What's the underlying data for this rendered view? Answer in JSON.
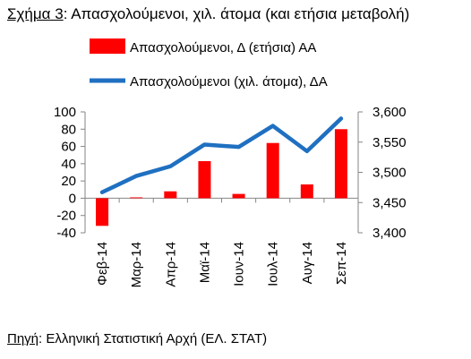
{
  "figure": {
    "title_label": "Σχήμα 3",
    "title_text": ": Απασχολούμενοι, χιλ. άτομα (και ετήσια μεταβολή)",
    "source_label": "Πηγή",
    "source_text": ": Ελληνική Στατιστική Αρχή (ΕΛ. ΣΤΑΤ)"
  },
  "chart_data": {
    "type": "bar+line",
    "categories": [
      "Φεβ-14",
      "Μαρ-14",
      "Απρ-14",
      "Μαϊ-14",
      "Ιουν-14",
      "Ιουλ-14",
      "Αυγ-14",
      "Σεπ-14"
    ],
    "series": [
      {
        "name": "Απασχολούμενοι, Δ (ετήσια) ΑΑ",
        "type": "bar",
        "axis": "left",
        "color": "#ff0000",
        "values": [
          -32,
          1,
          8,
          43,
          5,
          64,
          16,
          80
        ]
      },
      {
        "name": "Απασχολούμενοι (χιλ. άτομα), ΔΑ",
        "type": "line",
        "axis": "right",
        "color": "#1f70c1",
        "values": [
          3467,
          3494,
          3510,
          3546,
          3542,
          3577,
          3535,
          3589
        ]
      }
    ],
    "y_left": {
      "min": -40,
      "max": 100,
      "ticks": [
        "-40",
        "-20",
        "0",
        "20",
        "40",
        "60",
        "80",
        "100"
      ]
    },
    "y_right": {
      "min": 3400,
      "max": 3600,
      "ticks": [
        "3,400",
        "3,450",
        "3,500",
        "3,550",
        "3,600"
      ]
    },
    "grid": false,
    "legend_position": "top"
  }
}
